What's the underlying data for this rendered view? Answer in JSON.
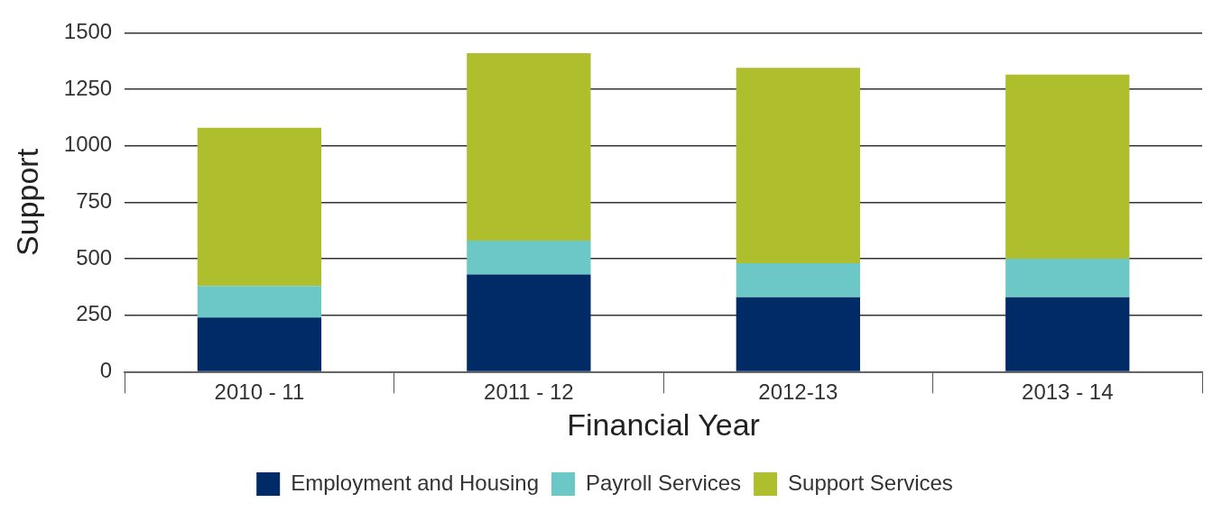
{
  "chart_data": {
    "type": "bar",
    "stacked": true,
    "xlabel": "Financial Year",
    "ylabel": "Support",
    "categories": [
      "2010 - 11",
      "2011 - 12",
      "2012-13",
      "2013 - 14"
    ],
    "series": [
      {
        "name": "Employment and Housing",
        "color": "#002b66",
        "values": [
          240,
          430,
          330,
          330
        ]
      },
      {
        "name": "Payroll Services",
        "color": "#6bc8c7",
        "values": [
          140,
          150,
          150,
          170
        ]
      },
      {
        "name": "Support Services",
        "color": "#afbe2d",
        "values": [
          700,
          830,
          865,
          815
        ]
      }
    ],
    "ylim": [
      0,
      1500
    ],
    "yticks": [
      0,
      250,
      500,
      750,
      1000,
      1250,
      1500
    ],
    "grid": "y",
    "legend": "bottom"
  }
}
